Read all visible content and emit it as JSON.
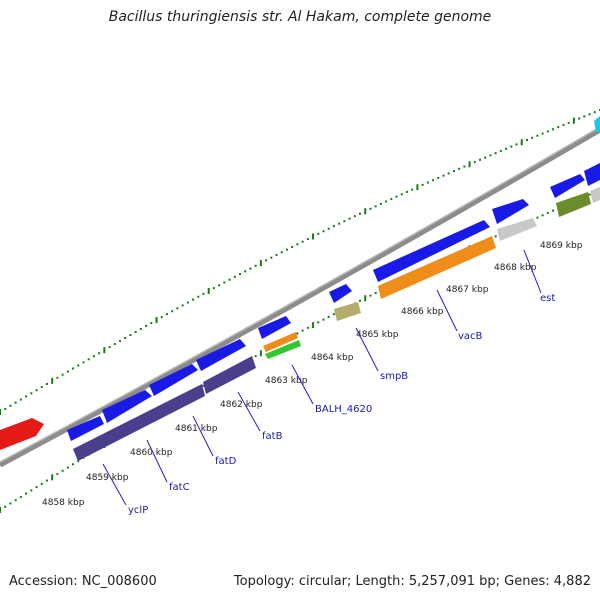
{
  "title": "Bacillus thuringiensis str. Al Hakam, complete genome",
  "footer": {
    "accession": "Accession: NC_008600",
    "summary": "Topology: circular; Length: 5,257,091 bp; Genes: 4,882"
  },
  "ticks": [
    {
      "label": "4858 kbp"
    },
    {
      "label": "4859 kbp"
    },
    {
      "label": "4860 kbp"
    },
    {
      "label": "4861 kbp"
    },
    {
      "label": "4862 kbp"
    },
    {
      "label": "4863 kbp"
    },
    {
      "label": "4864 kbp"
    },
    {
      "label": "4865 kbp"
    },
    {
      "label": "4866 kbp"
    },
    {
      "label": "4867 kbp"
    },
    {
      "label": "4868 kbp"
    },
    {
      "label": "4869 kbp"
    }
  ],
  "genes": [
    {
      "label": "yclP"
    },
    {
      "label": "fatC"
    },
    {
      "label": "fatD"
    },
    {
      "label": "fatB"
    },
    {
      "label": "BALH_4620"
    },
    {
      "label": "smpB"
    },
    {
      "label": "vacB"
    },
    {
      "label": "est"
    }
  ],
  "colors": {
    "cds_blue": "#1a1ae6",
    "purple": "#4a3f8c",
    "red": "#e61919",
    "orange": "#f08c19",
    "green": "#33c633",
    "khaki": "#b3ad6b",
    "gray": "#c8c8c8",
    "olive": "#6b8c2a",
    "cyan": "#19c8f0",
    "backbone": "#8c8c8c",
    "tick": "#1a7a1a",
    "label_line": "#2020c0"
  }
}
